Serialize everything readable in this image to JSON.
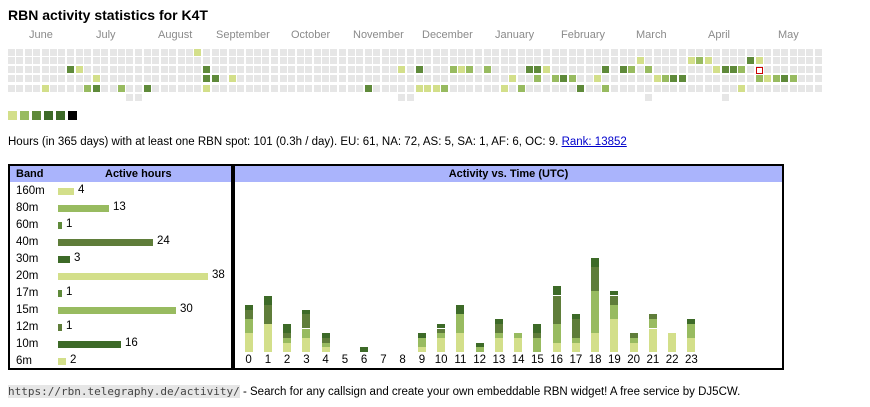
{
  "title": "RBN activity statistics for K4T",
  "colors": {
    "empty": "#e6e6e6",
    "level1": "#d3df8a",
    "level2": "#98bb60",
    "level3": "#5f8a3a",
    "level4": "#3d6a28",
    "level5": "#000000",
    "highlight": "#cc0000",
    "header": "#aab4fc"
  },
  "calendar": {
    "months": [
      "June",
      "July",
      "August",
      "September",
      "October",
      "November",
      "December",
      "January",
      "February",
      "March",
      "April",
      "May"
    ],
    "active_days": [
      {
        "week": 4,
        "day": 4,
        "level": 1
      },
      {
        "week": 7,
        "day": 2,
        "level": 3
      },
      {
        "week": 8,
        "day": 2,
        "level": 1
      },
      {
        "week": 9,
        "day": 4,
        "level": 2
      },
      {
        "week": 10,
        "day": 4,
        "level": 3
      },
      {
        "week": 10,
        "day": 3,
        "level": 1
      },
      {
        "week": 13,
        "day": 4,
        "level": 2
      },
      {
        "week": 16,
        "day": 4,
        "level": 3
      },
      {
        "week": 22,
        "day": 0,
        "level": 1
      },
      {
        "week": 23,
        "day": 2,
        "level": 3
      },
      {
        "week": 23,
        "day": 3,
        "level": 3
      },
      {
        "week": 23,
        "day": 4,
        "level": 1
      },
      {
        "week": 24,
        "day": 3,
        "level": 3
      },
      {
        "week": 26,
        "day": 3,
        "level": 1
      },
      {
        "week": 40,
        "day": 5,
        "level": 2
      },
      {
        "week": 41,
        "day": 5,
        "level": 1
      },
      {
        "week": 42,
        "day": 4,
        "level": 3
      },
      {
        "week": 46,
        "day": 2,
        "level": 1
      },
      {
        "week": 48,
        "day": 2,
        "level": 3
      },
      {
        "week": 48,
        "day": 4,
        "level": 1
      },
      {
        "week": 49,
        "day": 4,
        "level": 1
      },
      {
        "week": 50,
        "day": 4,
        "level": 1
      },
      {
        "week": 51,
        "day": 4,
        "level": 2
      },
      {
        "week": 52,
        "day": 2,
        "level": 2
      },
      {
        "week": 53,
        "day": 2,
        "level": 1
      },
      {
        "week": 54,
        "day": 2,
        "level": 2
      },
      {
        "week": 56,
        "day": 2,
        "level": 2
      },
      {
        "week": 58,
        "day": 4,
        "level": 1
      },
      {
        "week": 59,
        "day": 3,
        "level": 1
      },
      {
        "week": 60,
        "day": 4,
        "level": 2
      },
      {
        "week": 61,
        "day": 2,
        "level": 3
      },
      {
        "week": 62,
        "day": 2,
        "level": 3
      },
      {
        "week": 62,
        "day": 3,
        "level": 2
      },
      {
        "week": 63,
        "day": 2,
        "level": 1
      },
      {
        "week": 64,
        "day": 3,
        "level": 2
      },
      {
        "week": 65,
        "day": 3,
        "level": 3
      },
      {
        "week": 66,
        "day": 3,
        "level": 2
      },
      {
        "week": 67,
        "day": 4,
        "level": 3
      },
      {
        "week": 68,
        "day": 6,
        "level": 2
      },
      {
        "week": 69,
        "day": 3,
        "level": 1
      },
      {
        "week": 70,
        "day": 2,
        "level": 3
      },
      {
        "week": 70,
        "day": 4,
        "level": 2
      },
      {
        "week": 71,
        "day": 5,
        "level": 2
      },
      {
        "week": 72,
        "day": 2,
        "level": 3
      },
      {
        "week": 73,
        "day": 2,
        "level": 2
      },
      {
        "week": 74,
        "day": 1,
        "level": 1
      },
      {
        "week": 75,
        "day": 2,
        "level": 2
      },
      {
        "week": 76,
        "day": 3,
        "level": 1
      },
      {
        "week": 77,
        "day": 3,
        "level": 2
      },
      {
        "week": 78,
        "day": 3,
        "level": 3
      },
      {
        "week": 79,
        "day": 3,
        "level": 3
      },
      {
        "week": 80,
        "day": 1,
        "level": 1
      },
      {
        "week": 81,
        "day": 1,
        "level": 2
      },
      {
        "week": 82,
        "day": 1,
        "level": 1
      },
      {
        "week": 83,
        "day": 2,
        "level": 1
      },
      {
        "week": 84,
        "day": 2,
        "level": 3
      },
      {
        "week": 85,
        "day": 2,
        "level": 3
      },
      {
        "week": 86,
        "day": 2,
        "level": 2
      },
      {
        "week": 86,
        "day": 4,
        "level": 1
      },
      {
        "week": 87,
        "day": 1,
        "level": 3
      },
      {
        "week": 88,
        "day": 1,
        "level": 1
      },
      {
        "week": 88,
        "day": 3,
        "level": 2
      },
      {
        "week": 89,
        "day": 3,
        "level": 1
      },
      {
        "week": 90,
        "day": 3,
        "level": 2
      },
      {
        "week": 91,
        "day": 3,
        "level": 3
      },
      {
        "week": 92,
        "day": 3,
        "level": 2
      }
    ]
  },
  "summary": {
    "text": "Hours (in 365 days) with at least one RBN spot: 101 (0.3h / day). EU: 61, NA: 72, AS: 5, SA: 1, AF: 6, OC: 9.",
    "rank_link": "Rank: 13852"
  },
  "band_table": {
    "header_band": "Band",
    "header_hours": "Active hours",
    "rows": [
      {
        "band": "160m",
        "hours": 4,
        "color": "#d3df8a"
      },
      {
        "band": "80m",
        "hours": 13,
        "color": "#98bb60"
      },
      {
        "band": "60m",
        "hours": 1,
        "color": "#5f8a3a"
      },
      {
        "band": "40m",
        "hours": 24,
        "color": "#5f7d3a"
      },
      {
        "band": "30m",
        "hours": 3,
        "color": "#3d6a28"
      },
      {
        "band": "20m",
        "hours": 38,
        "color": "#d3df8a"
      },
      {
        "band": "17m",
        "hours": 1,
        "color": "#5f8a3a"
      },
      {
        "band": "15m",
        "hours": 30,
        "color": "#98bb60"
      },
      {
        "band": "12m",
        "hours": 1,
        "color": "#5f7d3a"
      },
      {
        "band": "10m",
        "hours": 16,
        "color": "#3d6a28"
      },
      {
        "band": "6m",
        "hours": 2,
        "color": "#d3df8a"
      }
    ]
  },
  "chart_data": {
    "type": "bar",
    "title": "Activity vs. Time (UTC)",
    "categories": [
      "0",
      "1",
      "2",
      "3",
      "4",
      "5",
      "6",
      "7",
      "8",
      "9",
      "10",
      "11",
      "12",
      "13",
      "14",
      "15",
      "16",
      "17",
      "18",
      "19",
      "20",
      "21",
      "22",
      "23"
    ],
    "stack_colors": [
      "#d3df8a",
      "#98bb60",
      "#5f7d3a",
      "#3d6a28"
    ],
    "stacks": [
      [
        4,
        3,
        2,
        1
      ],
      [
        6,
        0,
        4,
        2
      ],
      [
        2,
        1,
        1,
        2
      ],
      [
        3,
        2,
        3,
        1
      ],
      [
        1,
        1,
        1,
        1
      ],
      [
        0,
        0,
        0,
        0
      ],
      [
        0,
        0,
        0,
        1
      ],
      [
        0,
        0,
        0,
        0
      ],
      [
        0,
        0,
        0,
        0
      ],
      [
        1,
        2,
        0,
        1
      ],
      [
        3,
        1,
        1,
        1
      ],
      [
        4,
        4,
        0,
        2
      ],
      [
        0,
        1,
        0,
        1
      ],
      [
        3,
        1,
        2,
        1
      ],
      [
        3,
        1,
        0,
        0
      ],
      [
        0,
        3,
        1,
        2
      ],
      [
        2,
        4,
        6,
        2
      ],
      [
        2,
        1,
        4,
        1
      ],
      [
        4,
        9,
        5,
        2
      ],
      [
        7,
        3,
        2,
        1
      ],
      [
        2,
        1,
        1,
        0
      ],
      [
        5,
        2,
        1,
        0
      ],
      [
        4,
        0,
        0,
        0
      ],
      [
        3,
        3,
        0,
        1
      ]
    ],
    "ylim": [
      0,
      34
    ]
  },
  "footer": {
    "url": "https://rbn.telegraphy.de/activity/",
    "text": " - Search for any callsign and create your own embeddable RBN widget! A free service by DJ5CW."
  }
}
